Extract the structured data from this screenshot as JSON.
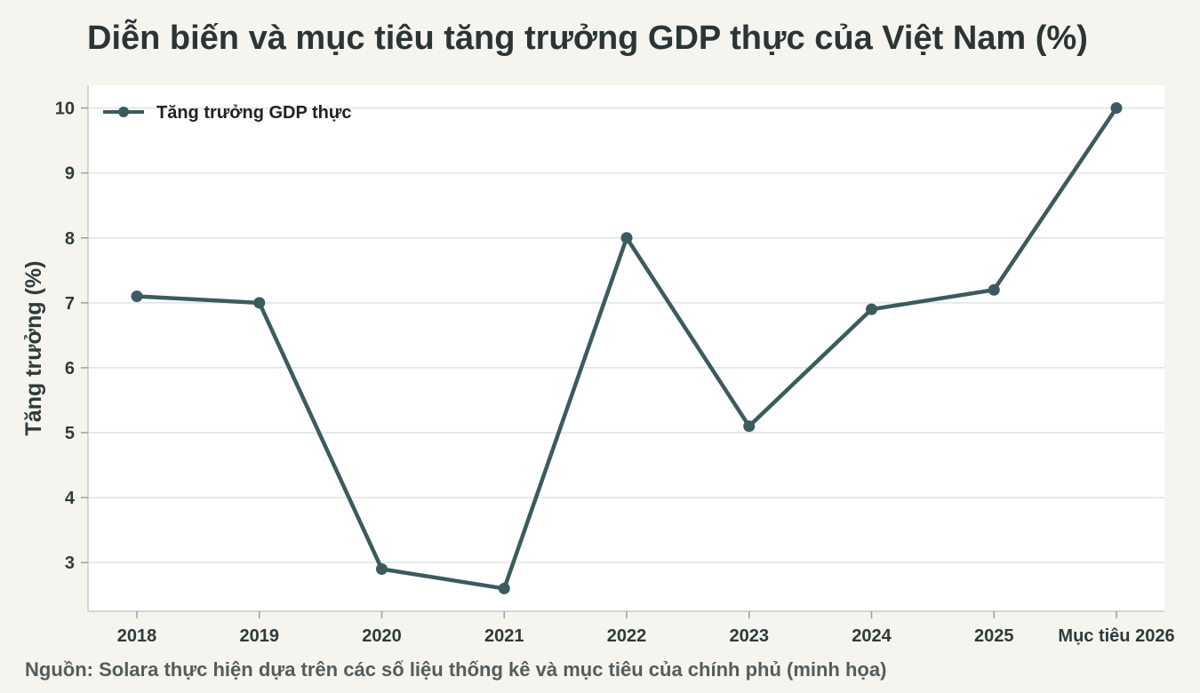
{
  "title": "Diễn biến và mục tiêu tăng trưởng GDP thực của Việt Nam (%)",
  "source": "Nguồn: Solara thực hiện dựa trên các số liệu thống kê và mục tiêu của chính phủ (minh họa)",
  "chart_data": {
    "type": "line",
    "title": "Diễn biến và mục tiêu tăng trưởng GDP thực của Việt Nam (%)",
    "xlabel": "",
    "ylabel": "Tăng trưởng (%)",
    "categories": [
      "2018",
      "2019",
      "2020",
      "2021",
      "2022",
      "2023",
      "2024",
      "2025",
      "Mục tiêu 2026"
    ],
    "series": [
      {
        "name": "Tăng trưởng GDP thực",
        "values": [
          7.1,
          7.0,
          2.9,
          2.6,
          8.0,
          5.1,
          6.9,
          7.2,
          10.0
        ],
        "color": "#3b5b5e"
      }
    ],
    "yticks": [
      3,
      4,
      5,
      6,
      7,
      8,
      9,
      10
    ],
    "ylim": [
      2.25,
      10.35
    ],
    "grid": true,
    "legend": "top-left",
    "plot_background": "#ffffff",
    "page_background": "#f5f4ef"
  }
}
